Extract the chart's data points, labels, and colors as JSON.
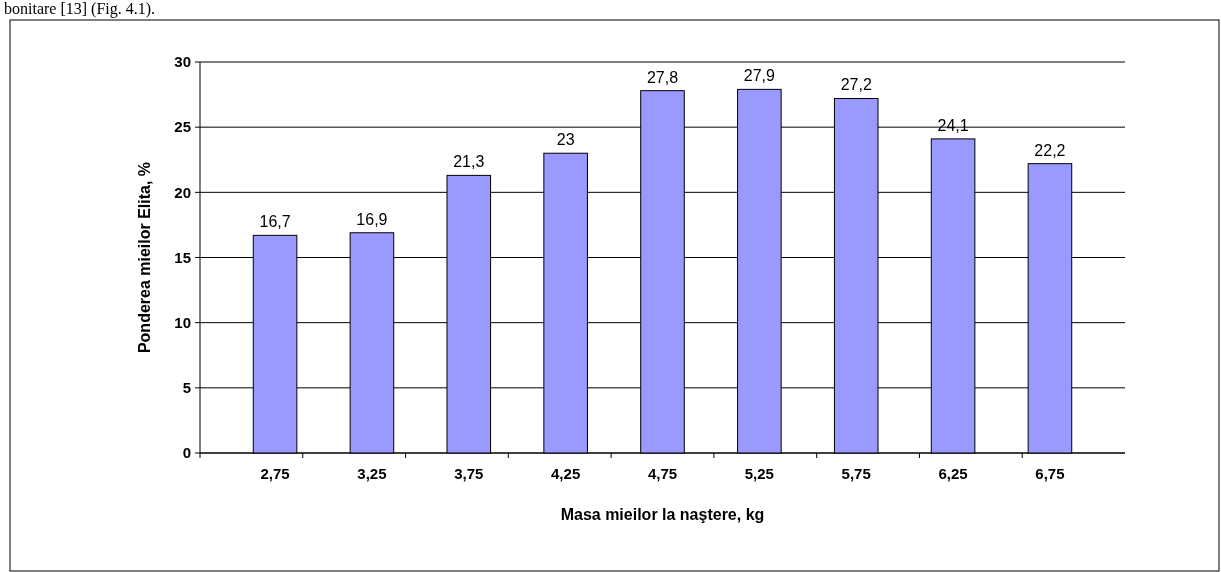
{
  "chart_data": {
    "type": "bar",
    "xlabel": "Masa mieilor la naştere, kg",
    "ylabel": "Ponderea mieilor Elita, %",
    "categories": [
      "2,75",
      "3,25",
      "3,75",
      "4,25",
      "4,75",
      "5,25",
      "5,75",
      "6,25",
      "6,75"
    ],
    "values": [
      16.7,
      16.9,
      21.3,
      23,
      27.8,
      27.9,
      27.2,
      24.1,
      22.2
    ],
    "value_labels": [
      "16,7",
      "16,9",
      "21,3",
      "23",
      "27,8",
      "27,9",
      "27,2",
      "24,1",
      "22,2"
    ],
    "color": "#9999ff",
    "ylim": [
      0,
      30
    ],
    "yticks": [
      0,
      5,
      10,
      15,
      20,
      25,
      30
    ],
    "grid": "y",
    "annotations": [
      "bonitare [13] (Fig. 4.1)."
    ]
  }
}
